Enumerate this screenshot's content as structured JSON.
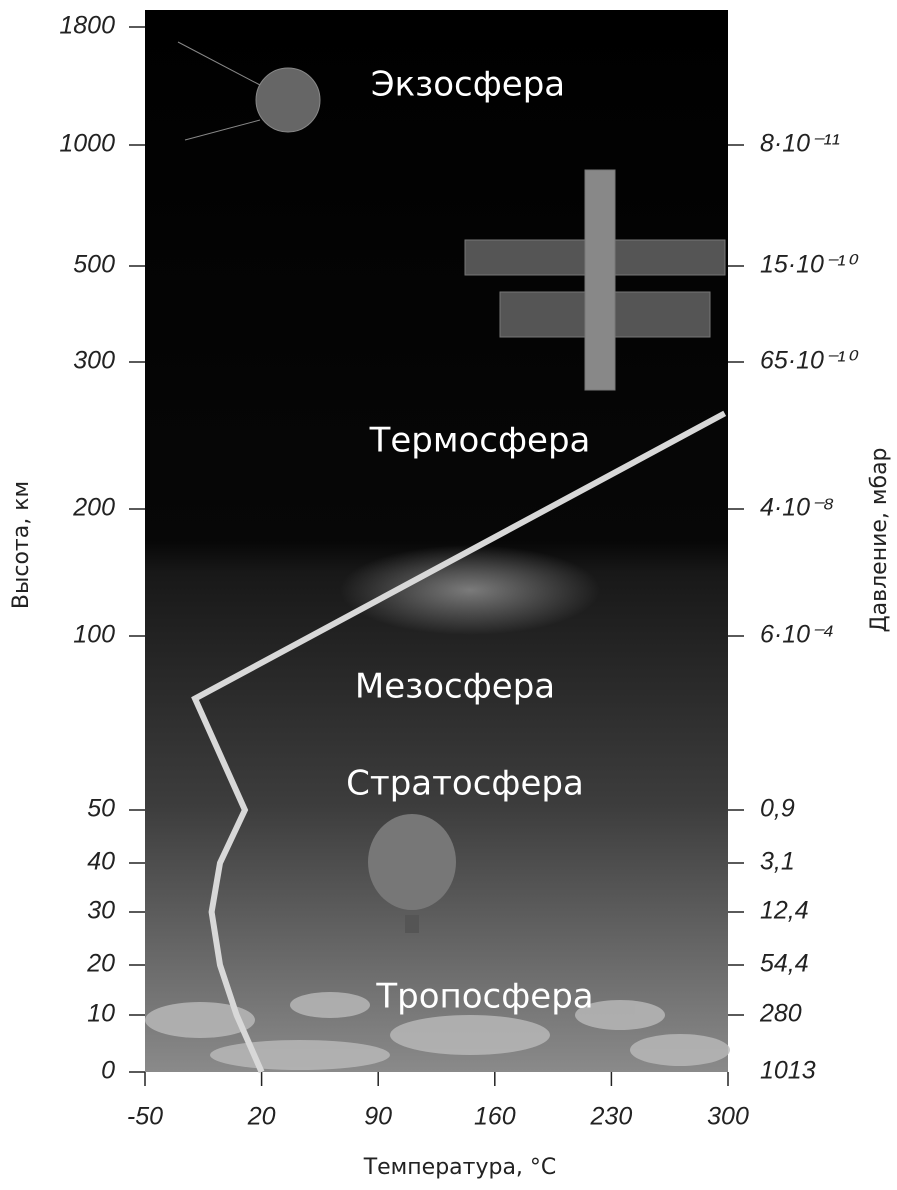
{
  "chart_data": {
    "type": "line",
    "xlabel": "Температура, °C",
    "ylabel": "Высота, км",
    "y2label": "Давление, мбар",
    "xlim": [
      -50,
      300
    ],
    "xticks": [
      -50,
      20,
      90,
      160,
      230,
      300
    ],
    "ylim": [
      0,
      1800
    ],
    "yticks": [
      0,
      10,
      20,
      30,
      40,
      50,
      100,
      200,
      300,
      500,
      1000,
      1800
    ],
    "pressure_ticks": [
      {
        "altitude": 0,
        "label": "1013"
      },
      {
        "altitude": 10,
        "label": "280"
      },
      {
        "altitude": 20,
        "label": "54,4"
      },
      {
        "altitude": 30,
        "label": "12,4"
      },
      {
        "altitude": 40,
        "label": "3,1"
      },
      {
        "altitude": 50,
        "label": "0,9"
      },
      {
        "altitude": 100,
        "label": "6·10⁻⁴"
      },
      {
        "altitude": 200,
        "label": "4·10⁻⁸"
      },
      {
        "altitude": 300,
        "label": "65·10⁻¹⁰"
      },
      {
        "altitude": 500,
        "label": "15·10⁻¹⁰"
      },
      {
        "altitude": 1000,
        "label": "8·10⁻¹¹"
      }
    ],
    "layers": [
      "Экзосфера",
      "Термосфера",
      "Мезосфера",
      "Стратосфера",
      "Тропосфера"
    ],
    "series": [
      {
        "color": "#d8d8d8",
        "x": [
          20,
          5,
          -5,
          -10,
          -5,
          10,
          -20,
          298
        ],
        "values": [
          0,
          10,
          20,
          30,
          40,
          50,
          82,
          265
        ]
      }
    ]
  }
}
